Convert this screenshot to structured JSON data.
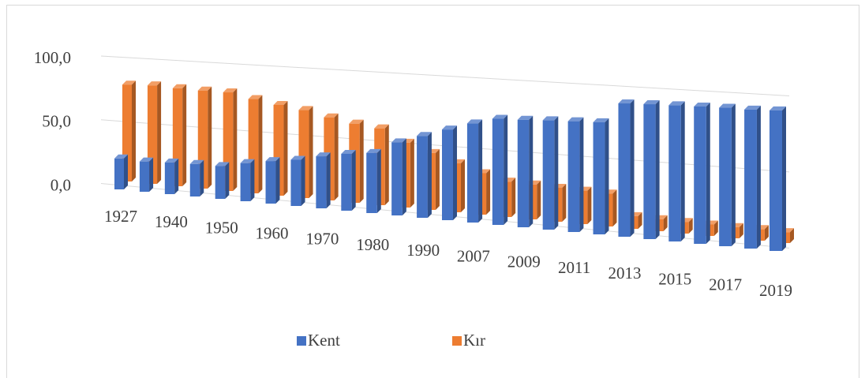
{
  "chart_data": {
    "type": "bar3d",
    "categories": [
      "1927",
      null,
      "1940",
      null,
      "1950",
      null,
      "1960",
      null,
      "1970",
      null,
      "1980",
      null,
      "1990",
      null,
      "2007",
      null,
      "2009",
      null,
      "2011",
      null,
      "2013",
      null,
      "2015",
      null,
      "2017",
      null,
      "2019"
    ],
    "series": [
      {
        "name": "Kent",
        "color": "#4472c4",
        "values": [
          24.2,
          23.5,
          24.4,
          24.9,
          25.0,
          28.8,
          31.9,
          34.4,
          38.5,
          41.8,
          43.9,
          53.0,
          59.0,
          64.9,
          70.5,
          75.0,
          75.5,
          76.3,
          76.8,
          77.3,
          91.3,
          91.8,
          92.1,
          92.3,
          92.5,
          92.3,
          92.8
        ]
      },
      {
        "name": "Kır",
        "color": "#ed7d31",
        "values": [
          75.8,
          76.5,
          75.6,
          75.1,
          75.0,
          71.2,
          68.1,
          65.6,
          61.5,
          58.2,
          56.1,
          47.0,
          41.0,
          35.1,
          29.5,
          25.0,
          24.5,
          23.7,
          23.2,
          22.7,
          8.7,
          8.2,
          7.9,
          7.7,
          7.5,
          7.7,
          7.2
        ]
      }
    ],
    "ylim": [
      0,
      100
    ],
    "yticks": [
      {
        "value": 0,
        "label": "0,0"
      },
      {
        "value": 50,
        "label": "50,0"
      },
      {
        "value": 100,
        "label": "100,0"
      }
    ],
    "grid": true,
    "legend": "bottom"
  }
}
